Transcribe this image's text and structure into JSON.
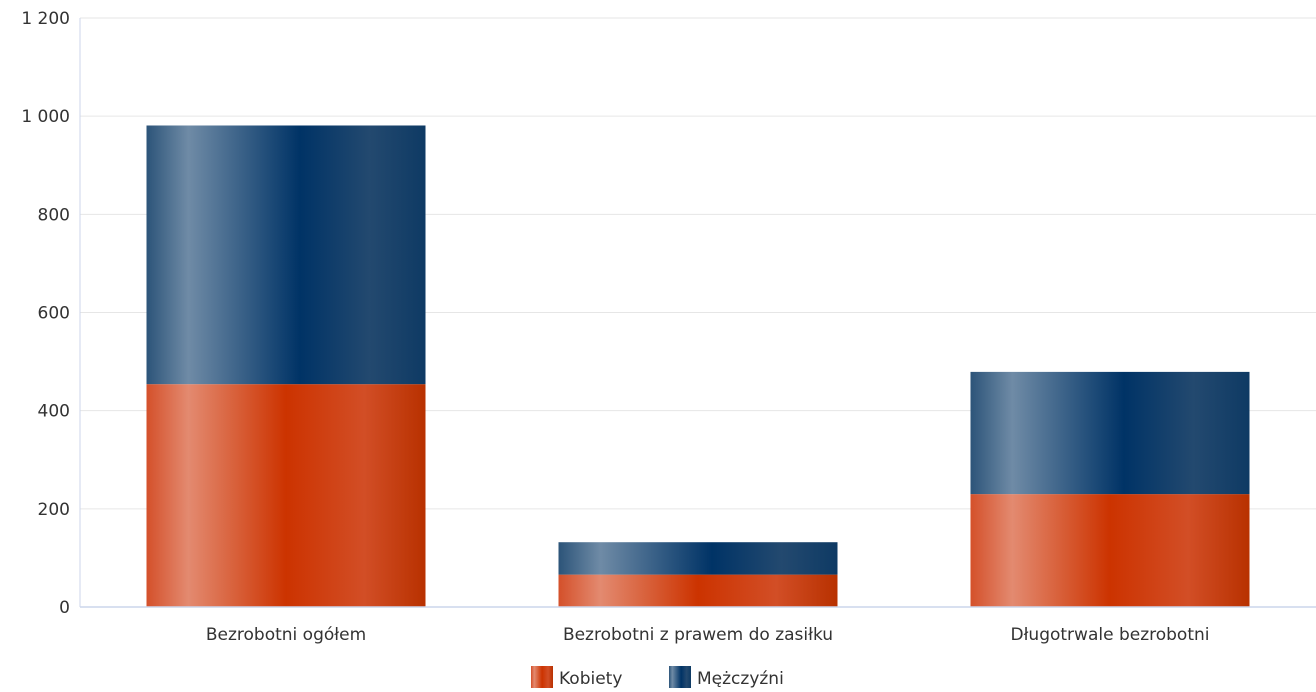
{
  "chart_data": {
    "type": "bar",
    "stacked": true,
    "categories": [
      "Bezrobotni ogółem",
      "Bezrobotni z prawem do zasiłku",
      "Długotrwale bezrobotni"
    ],
    "series": [
      {
        "name": "Kobiety",
        "values": [
          454,
          66,
          230
        ],
        "color": "#cc3300"
      },
      {
        "name": "Mężczyźni",
        "values": [
          527,
          66,
          249
        ],
        "color": "#003366"
      }
    ],
    "yticks": [
      "0",
      "200",
      "400",
      "600",
      "800",
      "1 000",
      "1 200"
    ],
    "ylim": [
      0,
      1200
    ],
    "grid": true,
    "legend": "bottom-center"
  },
  "colors": {
    "axis": "#ccd6eb",
    "grid": "#e6e6e6",
    "text": "#333333"
  }
}
